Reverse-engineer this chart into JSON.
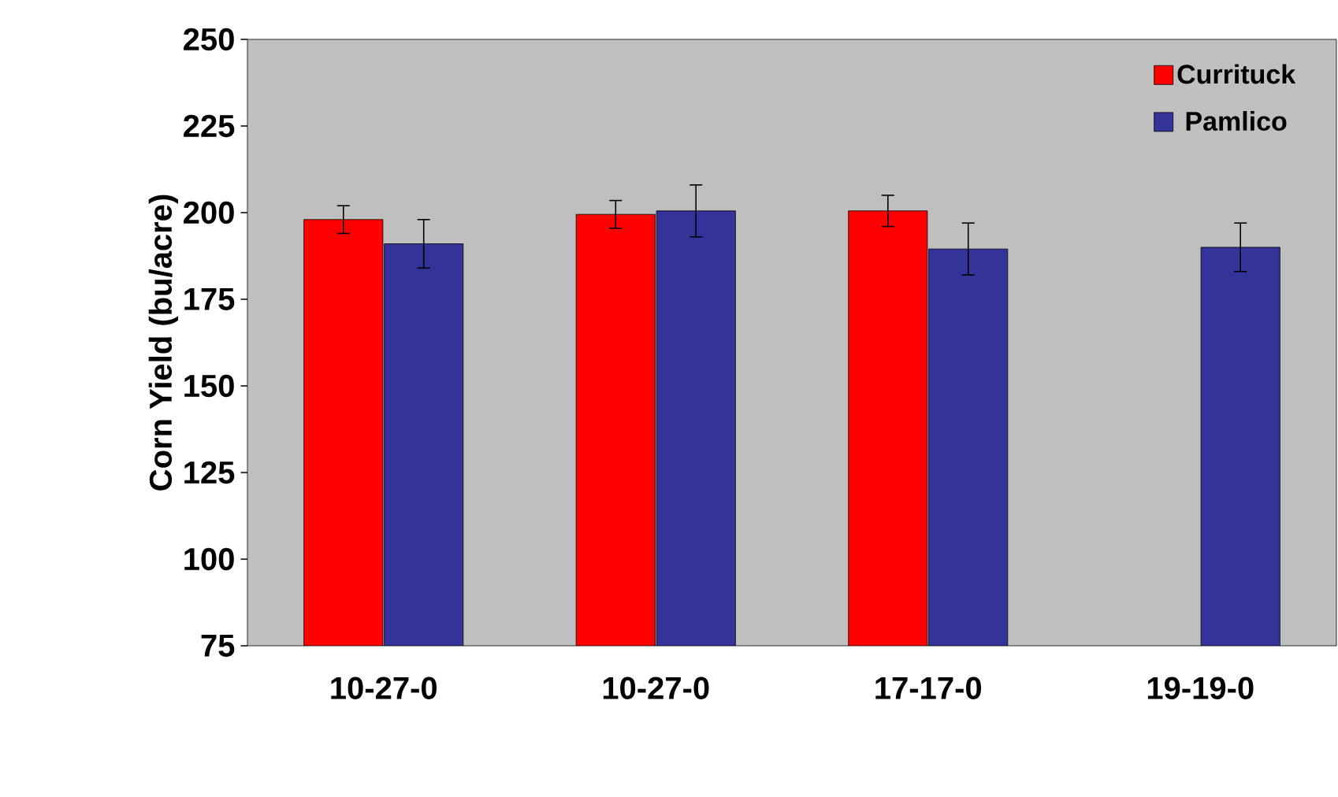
{
  "chart_data": {
    "type": "bar",
    "ylabel": "Corn Yield (bu/acre)",
    "categories": [
      "10-27-0",
      "10-27-0",
      "17-17-0",
      "19-19-0"
    ],
    "series": [
      {
        "name": "Currituck",
        "color": "#ff0000",
        "values": [
          198,
          199.5,
          200.5,
          null
        ],
        "errors": [
          4,
          4,
          4.5,
          null
        ]
      },
      {
        "name": "Pamlico",
        "color": "#333399",
        "values": [
          191,
          200.5,
          189.5,
          190
        ],
        "errors": [
          7,
          7.5,
          7.5,
          7
        ]
      }
    ],
    "ylim": [
      75,
      250
    ],
    "yticks": [
      75,
      100,
      125,
      150,
      175,
      200,
      225,
      250
    ],
    "legend": "top right",
    "grid": false
  }
}
